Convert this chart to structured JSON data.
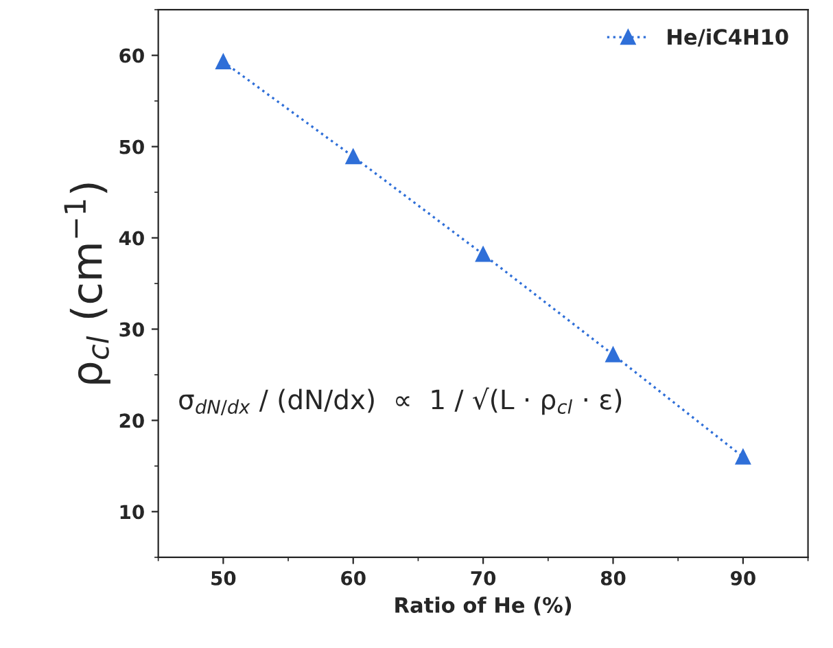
{
  "chart_data": {
    "type": "line",
    "xlabel": "Ratio of He (%)",
    "ylabel": "ρ$_{cl}$ (cm$^{−1}$)",
    "x": [
      50,
      60,
      70,
      80,
      90
    ],
    "series": [
      {
        "name": "He/iC4H10",
        "color": "#2f6fd8",
        "values": [
          59.3,
          48.9,
          38.2,
          27.2,
          16.0
        ]
      }
    ],
    "xlim": [
      45,
      95
    ],
    "xticks": [
      50,
      60,
      70,
      80,
      90
    ],
    "ylim": [
      5,
      65
    ],
    "yticks": [
      10,
      20,
      30,
      40,
      50,
      60
    ],
    "marker": "triangle",
    "line_style": "dotted",
    "legend": "top right",
    "grid": false,
    "annotations": [
      "σ$_{dN/dx}$ / (dN/dx)  ∝  1 / √(L · ρ$_{cl}$ · ε)"
    ]
  }
}
